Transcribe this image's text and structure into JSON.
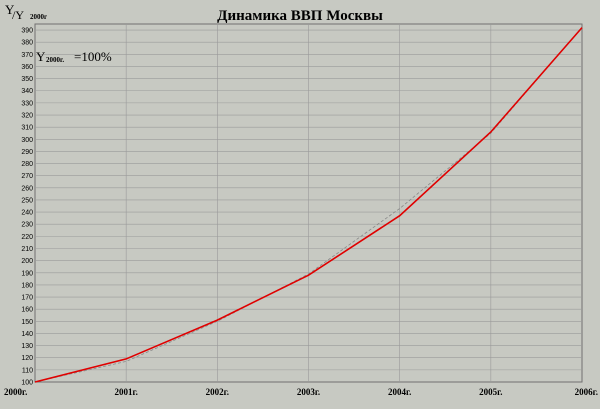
{
  "chart_data": {
    "type": "line",
    "title": "Динамика ВВП Москвы",
    "ylabel": {
      "main": "Y",
      "slash_y": "/Y",
      "sub": "2000г"
    },
    "annotation": {
      "y": "Y",
      "sub": "2000г.",
      "rest": "=100%"
    },
    "categories": [
      "2000г.",
      "2001г.",
      "2002г.",
      "2003г.",
      "2004г.",
      "2005г.",
      "2006г."
    ],
    "series": [
      {
        "values": [
          100,
          119,
          151,
          188,
          237,
          306,
          392
        ],
        "color": "#e00000"
      },
      {
        "values": [
          100,
          117,
          150,
          189,
          243,
          305,
          392
        ],
        "color": "#888888",
        "dashed": true
      }
    ],
    "ylim": [
      100,
      395
    ],
    "ytick_step": 10,
    "grid": true
  }
}
